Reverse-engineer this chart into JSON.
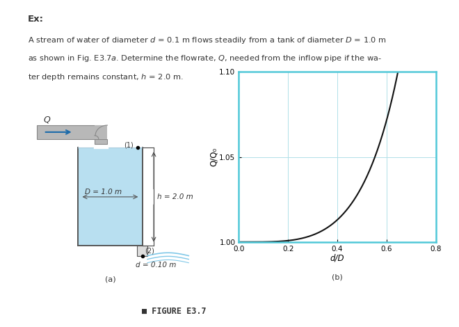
{
  "title_ex": "Ex:",
  "desc_line1": "A stream of water of diameter $d$ = 0.1 m flows steadily from a tank of diameter $D$ = 1.0 m",
  "desc_line2": "as shown in Fig. E3.7$a$. Determine the flowrate, $Q$, needed from the inflow pipe if the wa-",
  "desc_line3": "ter depth remains constant, $h$ = 2.0 m.",
  "figure_caption": "FIGURE E3.7",
  "subplot_a_label": "(a)",
  "subplot_b_label": "(b)",
  "graph_xlabel": "d/D",
  "graph_ylabel": "Q/Q₀",
  "graph_yticks": [
    1.0,
    1.05,
    1.1
  ],
  "graph_xticks": [
    0,
    0.2,
    0.4,
    0.6,
    0.8
  ],
  "graph_xlim": [
    0,
    0.8
  ],
  "graph_ylim": [
    1.0,
    1.1
  ],
  "tank_label": "D = 1.0 m",
  "depth_label": "h = 2.0 m",
  "outlet_label": "d = 0.10 m",
  "node1_label": "(1)",
  "node2_label": "(2)",
  "inflow_label": "Q",
  "bg_color": "#ffffff",
  "tank_fill_color": "#b8dff0",
  "tank_wall_color": "#777777",
  "pipe_fill_color": "#b8b8b8",
  "pipe_edge_color": "#888888",
  "graph_border_color": "#50c8d8",
  "curve_color": "#111111",
  "grid_color": "#b0e0e8",
  "text_color": "#333333",
  "jet_color": "#80c8e8",
  "arrow_color": "#1a6aaa"
}
